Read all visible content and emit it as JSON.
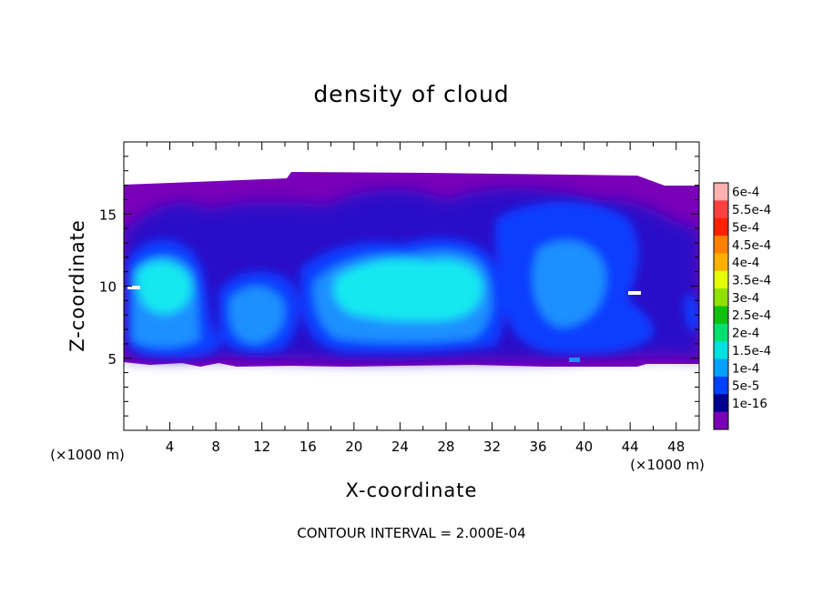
{
  "chart_data": {
    "type": "heatmap",
    "title": "density of cloud",
    "xlabel": "X-coordinate",
    "ylabel": "Z-coordinate",
    "x_unit_left": "(×1000 m)",
    "x_unit_right": "(×1000 m)",
    "footer": "CONTOUR INTERVAL = 2.000E-04",
    "xlim": [
      0,
      50
    ],
    "ylim": [
      0,
      20
    ],
    "x_ticks": [
      4,
      8,
      12,
      16,
      20,
      24,
      28,
      32,
      36,
      40,
      44,
      48
    ],
    "x_tick_labels": [
      "4",
      "8",
      "12",
      "16",
      "20",
      "24",
      "28",
      "32",
      "36",
      "40",
      "44",
      "48"
    ],
    "y_ticks": [
      5,
      10,
      15
    ],
    "y_tick_labels": [
      "5",
      "10",
      "15"
    ],
    "colorbar": {
      "labels": [
        "6e-4",
        "5.5e-4",
        "5e-4",
        "4.5e-4",
        "4e-4",
        "3.5e-4",
        "3e-4",
        "2.5e-4",
        "2e-4",
        "1.5e-4",
        "1e-4",
        "5e-5",
        "1e-16"
      ],
      "colors": [
        "#ffb0b0",
        "#ff4040",
        "#ff2000",
        "#ff8000",
        "#ffb000",
        "#e6ff00",
        "#90e000",
        "#10c010",
        "#00e070",
        "#00e0e0",
        "#00a0ff",
        "#0040ff",
        "#000090",
        "#7a00b8"
      ]
    },
    "field": {
      "cloud_base_z": 4.5,
      "cloud_top_z": 17.2,
      "cores": [
        {
          "x": 3,
          "z": 10,
          "value": "1.8e-4"
        },
        {
          "x": 10,
          "z": 7.5,
          "value": "1.2e-4"
        },
        {
          "x": 15,
          "z": 7.5,
          "value": "1.0e-4"
        },
        {
          "x": 26,
          "z": 10,
          "value": "1.9e-4"
        },
        {
          "x": 38,
          "z": 10,
          "value": "1.2e-4"
        },
        {
          "x": 47,
          "z": 8,
          "value": "6e-5"
        }
      ]
    }
  }
}
